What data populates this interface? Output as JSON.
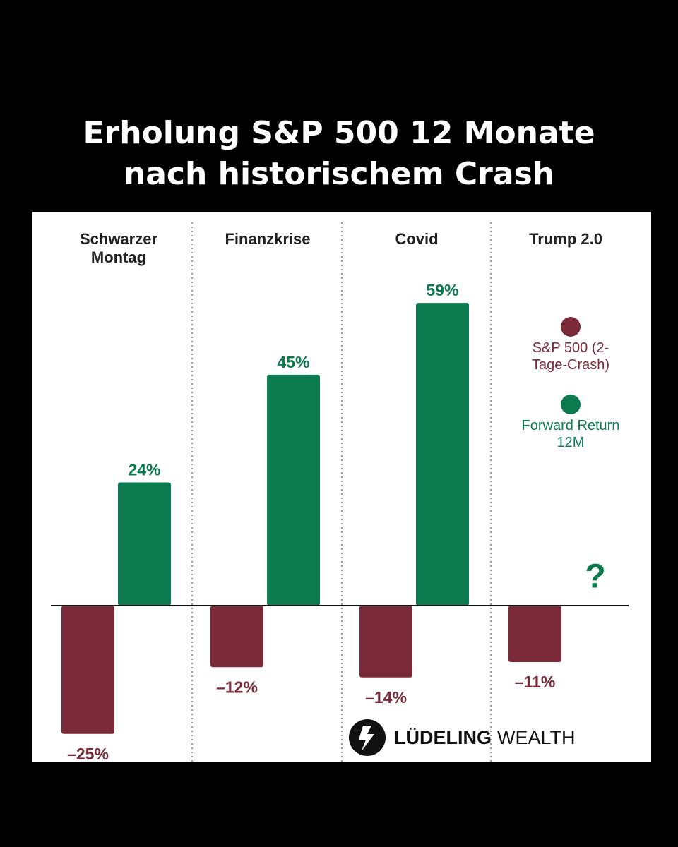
{
  "title": "Erholung S&P 500 12 Monate nach historischem Crash",
  "chart_data": {
    "type": "bar",
    "categories": [
      "Schwarzer Montag",
      "Finanzkrise",
      "Covid",
      "Trump 2.0"
    ],
    "series": [
      {
        "name": "S&P 500 (2-Tage-Crash)",
        "color": "#7b2a3a",
        "values": [
          -25,
          -12,
          -14,
          -11
        ],
        "value_labels": [
          "–25%",
          "–12%",
          "–14%",
          "–11%"
        ]
      },
      {
        "name": "Forward Return 12M",
        "color": "#0b7a4f",
        "values": [
          24,
          45,
          59,
          null
        ],
        "value_labels": [
          "24%",
          "45%",
          "59%",
          null
        ]
      }
    ],
    "annotation": "?",
    "legend": "right"
  },
  "brand": [
    "LÜDELING",
    "WEALTH"
  ]
}
